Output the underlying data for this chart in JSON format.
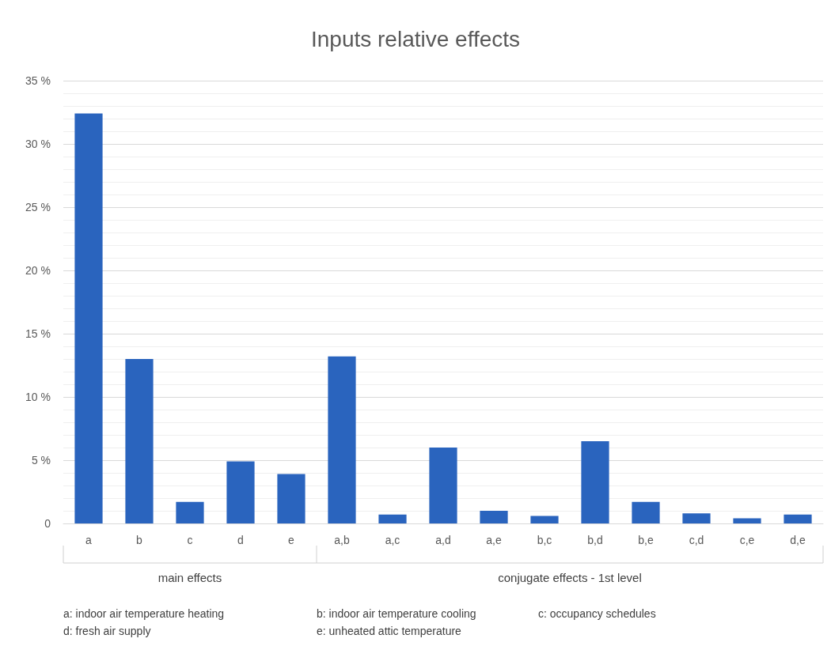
{
  "chart_data": {
    "type": "bar",
    "title": "Inputs relative effects",
    "categories": [
      "a",
      "b",
      "c",
      "d",
      "e",
      "a,b",
      "a,c",
      "a,d",
      "a,e",
      "b,c",
      "b,d",
      "b,e",
      "c,d",
      "c,e",
      "d,e"
    ],
    "values": [
      32.4,
      13.0,
      1.7,
      4.9,
      3.9,
      13.2,
      0.7,
      6.0,
      1.0,
      0.6,
      6.5,
      1.7,
      0.8,
      0.4,
      0.7
    ],
    "color": "#2a64be",
    "ylim": [
      0,
      35
    ],
    "yticks": [
      0,
      {
        "value": 5,
        "label": "5 %"
      },
      {
        "value": 10,
        "label": "10 %"
      },
      {
        "value": 15,
        "label": "15 %"
      },
      {
        "value": 20,
        "label": "20 %"
      },
      {
        "value": 25,
        "label": "25 %"
      },
      {
        "value": 30,
        "label": "30 %"
      },
      {
        "value": 35,
        "label": "35 %"
      }
    ],
    "grid": "y",
    "annotations": [
      "main effects",
      "conjugate effects - 1st level",
      "a: indoor air temperature heating",
      "b: indoor air temperature cooling",
      "c: occupancy schedules",
      "d: fresh air supply",
      "e: unheated attic temperature"
    ]
  }
}
